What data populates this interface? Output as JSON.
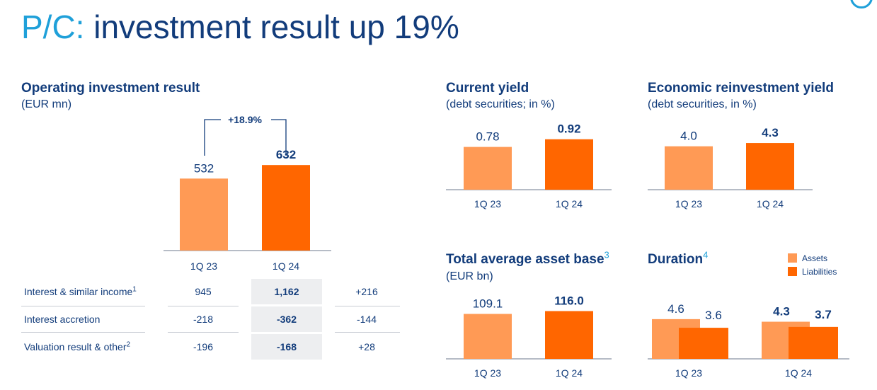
{
  "slide": {
    "title_prefix": "P/C:",
    "title_rest": " investment result up 19%"
  },
  "colors": {
    "prior": "#ff9a55",
    "current": "#ff6600",
    "text": "#123c7b",
    "accent": "#1fa0d9"
  },
  "chart_data": [
    {
      "id": "operating_investment_result",
      "type": "bar",
      "title": "Operating investment result",
      "subtitle": "(EUR mn)",
      "categories": [
        "1Q 23",
        "1Q 24"
      ],
      "values": [
        532,
        632
      ],
      "value_labels": [
        "532",
        "632"
      ],
      "annotation": "+18.9%",
      "ylim": [
        0,
        680
      ]
    },
    {
      "id": "current_yield",
      "type": "bar",
      "title": "Current yield",
      "subtitle": "(debt securities; in %)",
      "categories": [
        "1Q 23",
        "1Q 24"
      ],
      "values": [
        0.78,
        0.92
      ],
      "value_labels": [
        "0.78",
        "0.92"
      ],
      "ylim": [
        0,
        1.02
      ]
    },
    {
      "id": "economic_reinvestment_yield",
      "type": "bar",
      "title": "Economic reinvestment yield",
      "subtitle": "(debt securities, in %)",
      "categories": [
        "1Q 23",
        "1Q 24"
      ],
      "values": [
        4.0,
        4.3
      ],
      "value_labels": [
        "4.0",
        "4.3"
      ],
      "ylim": [
        0,
        4.5
      ]
    },
    {
      "id": "total_average_asset_base",
      "type": "bar",
      "title": "Total average asset base",
      "footnote": "3",
      "subtitle": "(EUR bn)",
      "categories": [
        "1Q 23",
        "1Q 24"
      ],
      "values": [
        109.1,
        116.0
      ],
      "value_labels": [
        "109.1",
        "116.0"
      ],
      "ylim": [
        0,
        122
      ]
    },
    {
      "id": "duration",
      "type": "bar",
      "title": "Duration",
      "footnote": "4",
      "categories": [
        "1Q 23",
        "1Q 24"
      ],
      "series": [
        {
          "name": "Assets",
          "values": [
            4.6,
            4.3
          ],
          "value_labels": [
            "4.6",
            "4.3"
          ]
        },
        {
          "name": "Liabilities",
          "values": [
            3.6,
            3.7
          ],
          "value_labels": [
            "3.6",
            "3.7"
          ]
        }
      ],
      "ylim": [
        0,
        5.0
      ]
    }
  ],
  "table": {
    "rows": [
      {
        "label": "Interest & similar income",
        "note": "1",
        "prior": "945",
        "current": "1,162",
        "delta": "+216"
      },
      {
        "label": "Interest accretion",
        "note": "",
        "prior": "-218",
        "current": "-362",
        "delta": "-144"
      },
      {
        "label": "Valuation result & other",
        "note": "2",
        "prior": "-196",
        "current": "-168",
        "delta": "+28"
      }
    ]
  }
}
